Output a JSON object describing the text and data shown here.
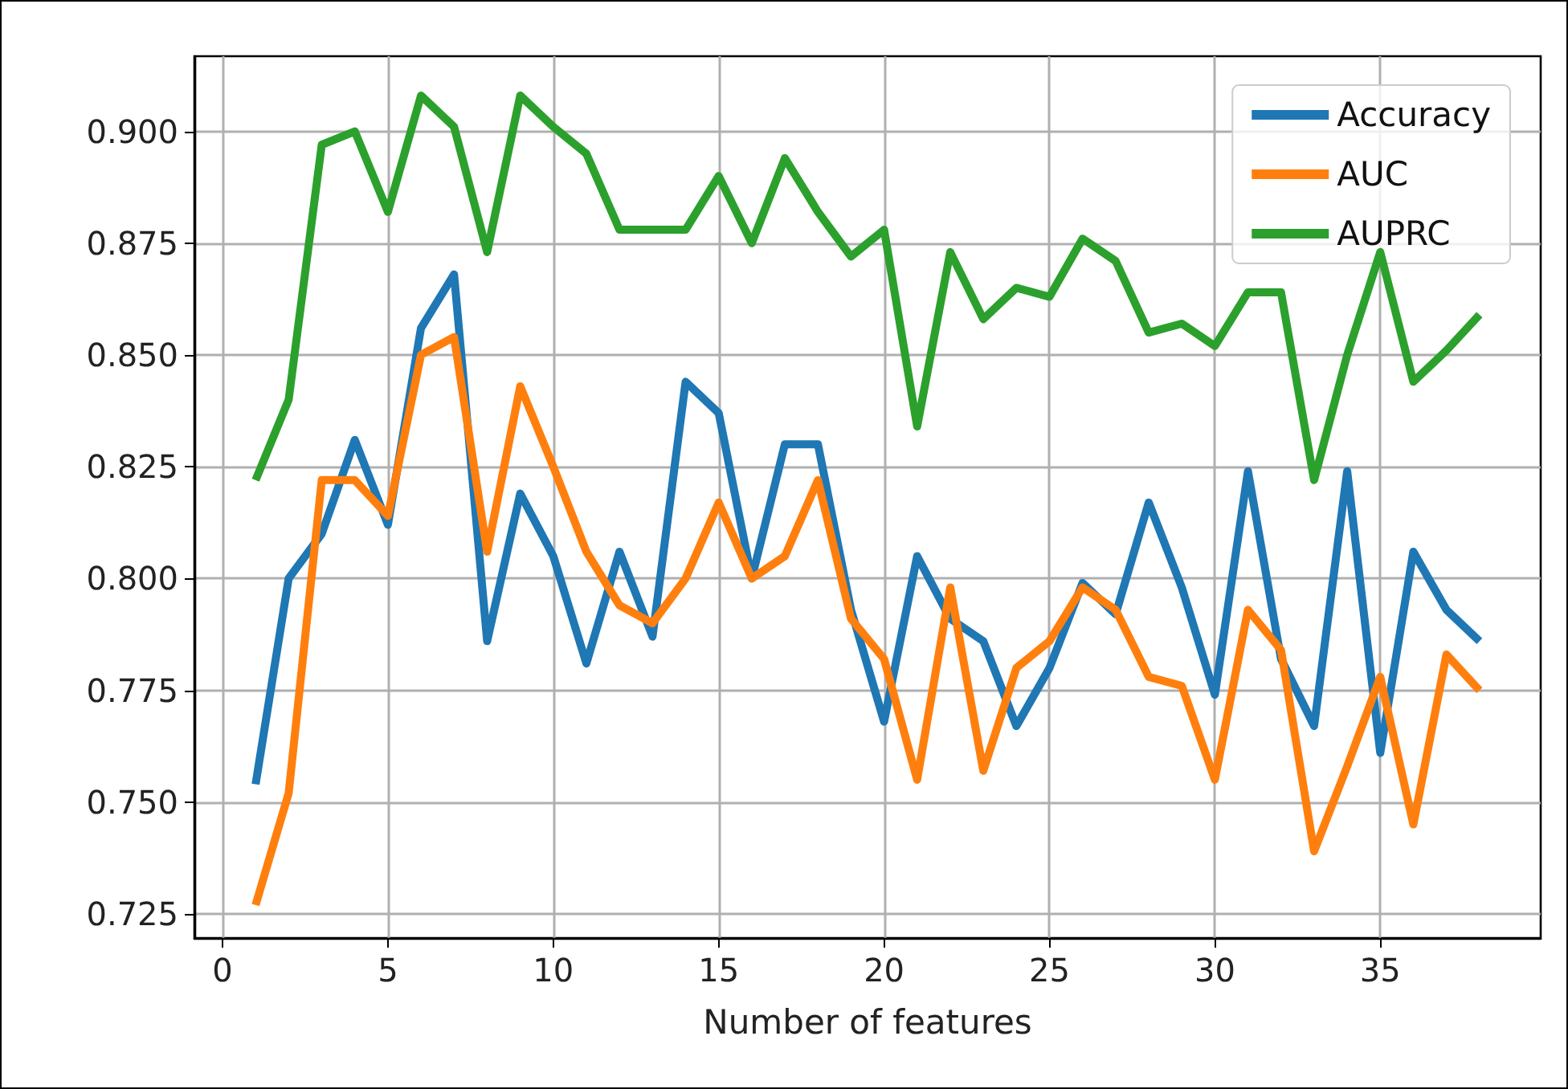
{
  "chart_data": {
    "type": "line",
    "xlabel": "Number of features",
    "x": [
      1,
      2,
      3,
      4,
      5,
      6,
      7,
      8,
      9,
      10,
      11,
      12,
      13,
      14,
      15,
      16,
      17,
      18,
      19,
      20,
      21,
      22,
      23,
      24,
      25,
      26,
      27,
      28,
      29,
      30,
      31,
      32,
      33,
      34,
      35,
      36,
      37,
      38
    ],
    "series": [
      {
        "name": "Accuracy",
        "color": "#1f77b4",
        "values": [
          0.754,
          0.8,
          0.81,
          0.831,
          0.812,
          0.856,
          0.868,
          0.786,
          0.819,
          0.805,
          0.781,
          0.806,
          0.787,
          0.844,
          0.837,
          0.8,
          0.83,
          0.83,
          0.793,
          0.768,
          0.805,
          0.791,
          0.786,
          0.767,
          0.78,
          0.799,
          0.792,
          0.817,
          0.798,
          0.774,
          0.824,
          0.782,
          0.767,
          0.824,
          0.761,
          0.806,
          0.793,
          0.786
        ]
      },
      {
        "name": "AUC",
        "color": "#ff7f0e",
        "values": [
          0.727,
          0.752,
          0.822,
          0.822,
          0.814,
          0.85,
          0.854,
          0.806,
          0.843,
          0.825,
          0.806,
          0.794,
          0.79,
          0.8,
          0.817,
          0.8,
          0.805,
          0.822,
          0.791,
          0.782,
          0.755,
          0.798,
          0.757,
          0.78,
          0.786,
          0.798,
          0.793,
          0.778,
          0.776,
          0.755,
          0.793,
          0.784,
          0.739,
          0.758,
          0.778,
          0.745,
          0.783,
          0.775
        ]
      },
      {
        "name": "AUPRC",
        "color": "#2ca02c",
        "values": [
          0.822,
          0.84,
          0.897,
          0.9,
          0.882,
          0.908,
          0.901,
          0.873,
          0.908,
          0.901,
          0.895,
          0.878,
          0.878,
          0.878,
          0.89,
          0.875,
          0.894,
          0.882,
          0.872,
          0.878,
          0.834,
          0.873,
          0.858,
          0.865,
          0.863,
          0.876,
          0.871,
          0.855,
          0.857,
          0.852,
          0.864,
          0.864,
          0.822,
          0.85,
          0.873,
          0.844,
          0.851,
          0.859
        ]
      }
    ],
    "xlim": [
      -0.85,
      39.85
    ],
    "xticks": [
      0,
      5,
      10,
      15,
      20,
      25,
      30,
      35
    ],
    "ylim": [
      0.7196,
      0.9168
    ],
    "yticks": [
      {
        "value": 0.725,
        "label": "0.725"
      },
      {
        "value": 0.75,
        "label": "0.750"
      },
      {
        "value": 0.775,
        "label": "0.775"
      },
      {
        "value": 0.8,
        "label": "0.800"
      },
      {
        "value": 0.825,
        "label": "0.825"
      },
      {
        "value": 0.85,
        "label": "0.850"
      },
      {
        "value": 0.875,
        "label": "0.875"
      },
      {
        "value": 0.9,
        "label": "0.900"
      }
    ],
    "grid": true,
    "legend": "top right",
    "marker": "none",
    "line_style": "solid"
  }
}
